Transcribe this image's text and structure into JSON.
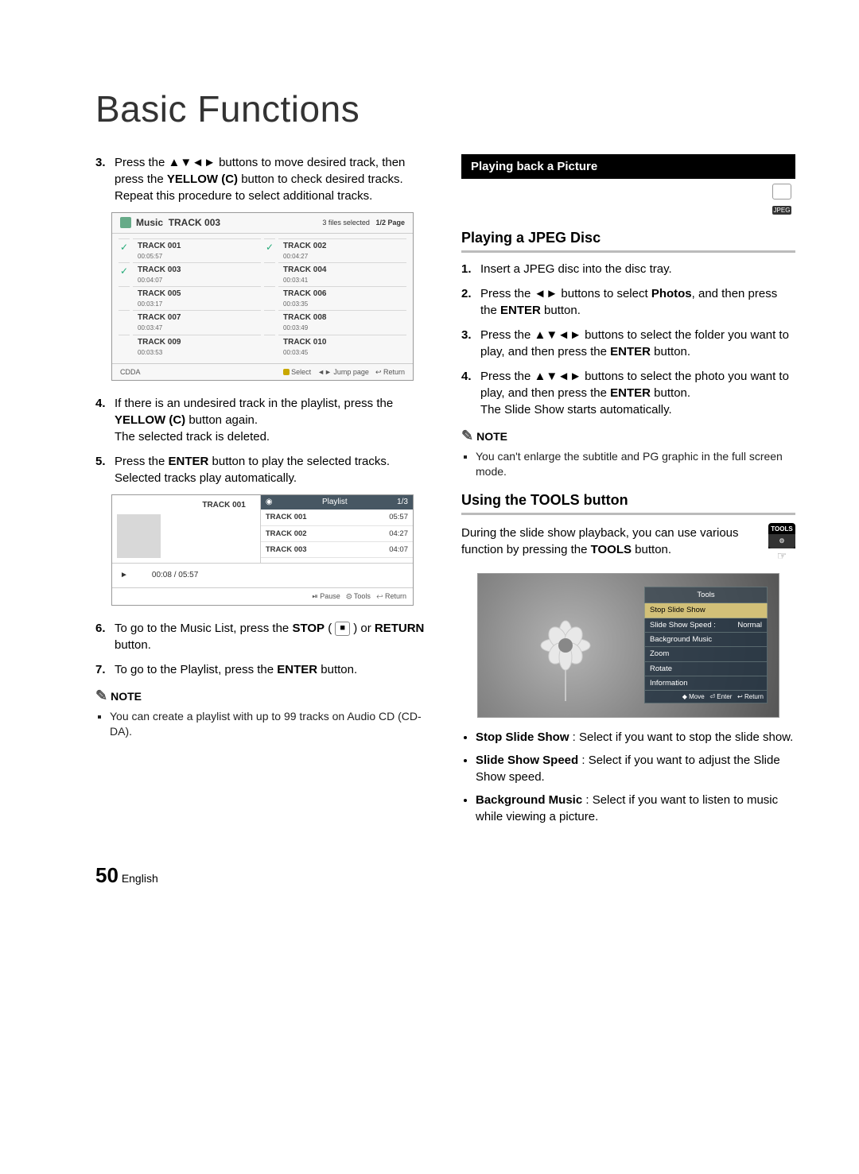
{
  "page_title": "Basic Functions",
  "page_number": "50",
  "page_lang": "English",
  "arrows4": "▲▼◄►",
  "arrows2": "◄►",
  "left_steps_3": "Press the ▲▼◄► buttons to move desired track, then press the YELLOW (C) button to check desired tracks.\nRepeat this procedure to select additional tracks.",
  "left_steps_4": "If there is an undesired track in the playlist, press the YELLOW (C) button again.\nThe selected track is deleted.",
  "left_steps_5": "Press the ENTER button to play the selected tracks.\nSelected tracks play automatically.",
  "left_steps_6": "To go to the Music List, press the STOP ( ■ ) or RETURN button.",
  "left_steps_7": "To go to the Playlist, press the ENTER button.",
  "left_note_heading": "NOTE",
  "left_note_1": "You can create a playlist with up to 99 tracks on Audio CD (CD-DA).",
  "music_panel": {
    "icon_label": "Music",
    "current": "TRACK 003",
    "selected_text": "3 files selected",
    "page_text": "1/2 Page",
    "cdda": "CDDA",
    "footer_select": "Select",
    "footer_jump": "Jump page",
    "footer_return": "Return",
    "tracks": [
      {
        "name": "TRACK 001",
        "time": "00:05:57",
        "checked": true
      },
      {
        "name": "TRACK 002",
        "time": "00:04:27",
        "checked": true
      },
      {
        "name": "TRACK 003",
        "time": "00:04:07",
        "checked": true
      },
      {
        "name": "TRACK 004",
        "time": "00:03:41",
        "checked": false
      },
      {
        "name": "TRACK 005",
        "time": "00:03:17",
        "checked": false
      },
      {
        "name": "TRACK 006",
        "time": "00:03:35",
        "checked": false
      },
      {
        "name": "TRACK 007",
        "time": "00:03:47",
        "checked": false
      },
      {
        "name": "TRACK 008",
        "time": "00:03:49",
        "checked": false
      },
      {
        "name": "TRACK 009",
        "time": "00:03:53",
        "checked": false
      },
      {
        "name": "TRACK 010",
        "time": "00:03:45",
        "checked": false
      }
    ]
  },
  "playlist_panel": {
    "now_track": "TRACK 001",
    "header": "Playlist",
    "page": "1/3",
    "rows": [
      {
        "name": "TRACK 001",
        "time": "05:57"
      },
      {
        "name": "TRACK 002",
        "time": "04:27"
      },
      {
        "name": "TRACK 003",
        "time": "04:07"
      }
    ],
    "progress": "00:08 / 05:57",
    "footer_pause": "Pause",
    "footer_tools": "Tools",
    "footer_return": "Return"
  },
  "section_bar": "Playing back a Picture",
  "jpeg_badge": "JPEG",
  "subhead1": "Playing a JPEG Disc",
  "jpeg_steps": {
    "1": "Insert a JPEG disc into the disc tray.",
    "2": "Press the ◄► buttons to select Photos, and then press the ENTER button.",
    "3": "Press the ▲▼◄► buttons to select the folder you want to play, and then press the ENTER button.",
    "4": "Press the ▲▼◄► buttons to select the photo you want to play, and then press the ENTER button.\nThe Slide Show starts automatically."
  },
  "right_note_heading": "NOTE",
  "right_note_1": "You can't enlarge the subtitle and PG graphic in the full screen mode.",
  "subhead2": "Using the TOOLS button",
  "tools_intro": "During the slide show playback, you can use various function by pressing the TOOLS button.",
  "tools_key_label": "TOOLS",
  "tools_menu": {
    "title": "Tools",
    "items": [
      {
        "label": "Stop Slide Show",
        "value": ""
      },
      {
        "label": "Slide Show Speed :",
        "value": "Normal"
      },
      {
        "label": "Background Music",
        "value": ""
      },
      {
        "label": "Zoom",
        "value": ""
      },
      {
        "label": "Rotate",
        "value": ""
      },
      {
        "label": "Information",
        "value": ""
      }
    ],
    "footer_move": "Move",
    "footer_enter": "Enter",
    "footer_return": "Return"
  },
  "tools_bullets": [
    {
      "b": "Stop Slide Show",
      "t": " : Select if you want to stop the slide show."
    },
    {
      "b": "Slide Show Speed",
      "t": " : Select if you want to adjust the Slide Show speed."
    },
    {
      "b": "Background Music",
      "t": " : Select if you want to listen to music while viewing a picture."
    }
  ]
}
